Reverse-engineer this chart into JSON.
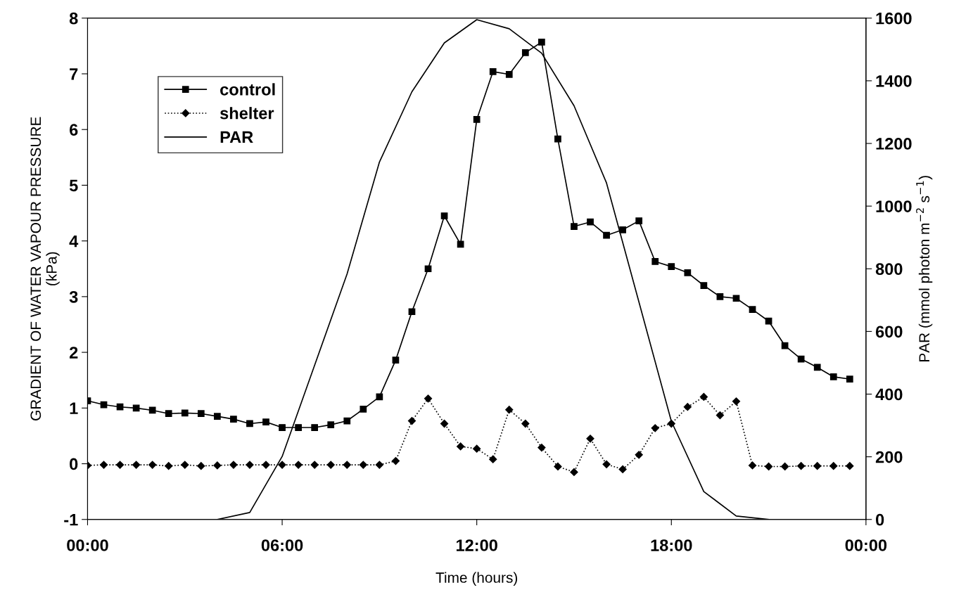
{
  "chart_data": {
    "type": "line",
    "xlabel": "Time (hours)",
    "ylabel": "GRADIENT OF WATER VAPOUR PRESSURE\n(kPa)",
    "y2label": "PAR (mmol photon m$^{−2}$ s$^{−1}$)",
    "xlim": [
      0,
      24
    ],
    "xticks": [
      {
        "value": 0,
        "label": "00:00"
      },
      {
        "value": 6,
        "label": "06:00"
      },
      {
        "value": 12,
        "label": "12:00"
      },
      {
        "value": 18,
        "label": "18:00"
      },
      {
        "value": 24,
        "label": "00:00"
      }
    ],
    "ylim": [
      -1,
      8
    ],
    "yticks": [
      -1,
      0,
      1,
      2,
      3,
      4,
      5,
      6,
      7,
      8
    ],
    "y2lim": [
      0,
      1600
    ],
    "y2ticks": [
      0,
      200,
      400,
      600,
      800,
      1000,
      1200,
      1400,
      1600
    ],
    "grid": false,
    "legend": "top left",
    "series": [
      {
        "name": "control",
        "color": "#000000",
        "marker": "square",
        "line_style": "solid",
        "x": [
          0,
          0.5,
          1,
          1.5,
          2,
          2.5,
          3,
          3.5,
          4,
          4.5,
          5,
          5.5,
          6,
          6.5,
          7,
          7.5,
          8,
          8.5,
          9,
          9.5,
          10,
          10.5,
          11,
          11.5,
          12,
          12.5,
          13,
          13.5,
          14,
          14.5,
          15,
          15.5,
          16,
          16.5,
          17,
          17.5,
          18,
          18.5,
          19,
          19.5,
          20,
          20.5,
          21,
          21.5,
          22,
          22.5,
          23,
          23.5
        ],
        "values": [
          1.13,
          1.06,
          1.02,
          1.0,
          0.96,
          0.9,
          0.91,
          0.9,
          0.85,
          0.8,
          0.72,
          0.75,
          0.65,
          0.65,
          0.65,
          0.7,
          0.77,
          0.98,
          1.2,
          1.86,
          2.73,
          3.5,
          4.45,
          3.94,
          6.18,
          7.04,
          6.99,
          7.38,
          7.57,
          5.83,
          4.26,
          4.34,
          4.1,
          4.2,
          4.36,
          3.63,
          3.54,
          3.43,
          3.2,
          3.0,
          2.97,
          2.77,
          2.56,
          2.12,
          1.88,
          1.73,
          1.56,
          1.52
        ]
      },
      {
        "name": "shelter",
        "color": "#000000",
        "marker": "diamond",
        "line_style": "dotted",
        "x": [
          0,
          0.5,
          1,
          1.5,
          2,
          2.5,
          3,
          3.5,
          4,
          4.5,
          5,
          5.5,
          6,
          6.5,
          7,
          7.5,
          8,
          8.5,
          9,
          9.5,
          10,
          10.5,
          11,
          11.5,
          12,
          12.5,
          13,
          13.5,
          14,
          14.5,
          15,
          15.5,
          16,
          16.5,
          17,
          17.5,
          18,
          18.5,
          19,
          19.5,
          20,
          20.5,
          21,
          21.5,
          22,
          22.5,
          23,
          23.5
        ],
        "values": [
          -0.03,
          -0.02,
          -0.02,
          -0.02,
          -0.02,
          -0.04,
          -0.02,
          -0.04,
          -0.03,
          -0.02,
          -0.02,
          -0.02,
          -0.02,
          -0.02,
          -0.02,
          -0.02,
          -0.02,
          -0.02,
          -0.02,
          0.05,
          0.77,
          1.17,
          0.72,
          0.31,
          0.27,
          0.08,
          0.97,
          0.72,
          0.29,
          -0.05,
          -0.15,
          0.45,
          -0.01,
          -0.1,
          0.16,
          0.64,
          0.72,
          1.02,
          1.2,
          0.87,
          1.12,
          -0.03,
          -0.05,
          -0.05,
          -0.04,
          -0.04,
          -0.04,
          -0.04
        ]
      },
      {
        "name": "PAR",
        "color": "#000000",
        "marker": "none",
        "line_style": "solid",
        "axis": "y2",
        "x": [
          4,
          5,
          6,
          7,
          8,
          9,
          10,
          11,
          12,
          13,
          14,
          15,
          16,
          17,
          18,
          19,
          20,
          21
        ],
        "values": [
          0,
          22,
          201,
          492,
          783,
          1141,
          1365,
          1521,
          1595,
          1566,
          1488,
          1320,
          1074,
          694,
          313,
          89,
          11,
          0
        ]
      }
    ]
  }
}
